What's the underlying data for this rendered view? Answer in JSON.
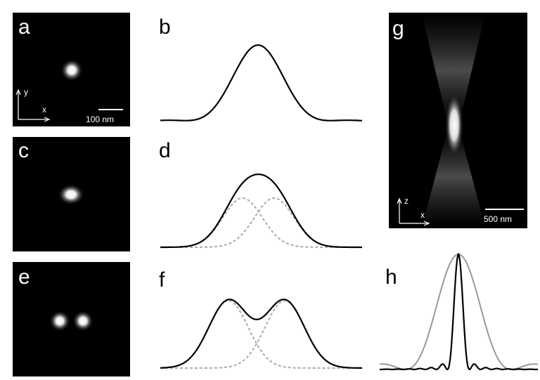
{
  "panels": [
    {
      "label": "a",
      "axis_y": "y",
      "axis_x": "x",
      "scale_bar": "100 nm"
    },
    {
      "label": "b"
    },
    {
      "label": "c"
    },
    {
      "label": "d"
    },
    {
      "label": "e"
    },
    {
      "label": "f"
    },
    {
      "label": "g",
      "axis_y": "z",
      "axis_x": "x",
      "scale_bar": "500 nm"
    },
    {
      "label": "h"
    }
  ]
}
